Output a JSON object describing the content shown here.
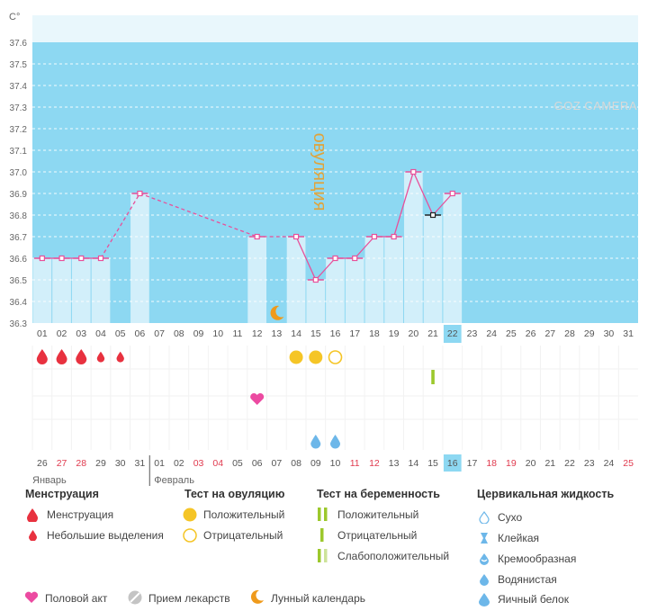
{
  "chart_data": {
    "type": "line",
    "ylabel": "C°",
    "ylim": [
      36.3,
      37.6
    ],
    "y_ticks": [
      "36.3",
      "36.4",
      "36.5",
      "36.6",
      "36.7",
      "36.8",
      "36.9",
      "37.0",
      "37.1",
      "37.2",
      "37.3",
      "37.4",
      "37.5",
      "37.6"
    ],
    "x_days": [
      "01",
      "02",
      "03",
      "04",
      "05",
      "06",
      "07",
      "08",
      "09",
      "10",
      "11",
      "12",
      "13",
      "14",
      "15",
      "16",
      "17",
      "18",
      "19",
      "20",
      "21",
      "22",
      "23",
      "24",
      "25",
      "26",
      "27",
      "28",
      "29",
      "30",
      "31"
    ],
    "highlight_day": "22",
    "series": [
      {
        "values": [
          36.6,
          36.6,
          36.6,
          36.6,
          null,
          36.9,
          null,
          null,
          null,
          null,
          null,
          36.7,
          null,
          36.7,
          36.5,
          36.6,
          36.6,
          36.7,
          36.7,
          37.0,
          36.8,
          36.9,
          null,
          null,
          null,
          null,
          null,
          null,
          null,
          null,
          null
        ]
      }
    ],
    "annotation": "овуляция",
    "menstruation_days": [
      {
        "day": "01",
        "type": "full"
      },
      {
        "day": "02",
        "type": "full"
      },
      {
        "day": "03",
        "type": "full"
      },
      {
        "day": "04",
        "type": "light"
      },
      {
        "day": "05",
        "type": "light"
      }
    ],
    "ovulation_test_days": [
      {
        "day": "14",
        "result": "positive"
      },
      {
        "day": "15",
        "result": "positive"
      },
      {
        "day": "16",
        "result": "negative"
      }
    ],
    "pregnancy_test_days": [
      {
        "day": "21",
        "result": "negative"
      }
    ],
    "intercourse_days": [
      "12"
    ],
    "cervical_fluid_days": [
      {
        "day": "15",
        "type": "watery"
      },
      {
        "day": "16",
        "type": "watery"
      }
    ],
    "moon_days": [
      "13"
    ],
    "cycle_dates": [
      "26",
      "27",
      "28",
      "29",
      "30",
      "31",
      "01",
      "02",
      "03",
      "04",
      "05",
      "06",
      "07",
      "08",
      "09",
      "10",
      "11",
      "12",
      "13",
      "14",
      "15",
      "16",
      "17",
      "18",
      "19",
      "20",
      "21",
      "22",
      "23",
      "24",
      "25"
    ],
    "cycle_red_dates": [
      1,
      2,
      8,
      9,
      16,
      17,
      23,
      24,
      30
    ],
    "cycle_highlight_index": 21,
    "month_left": "Январь",
    "month_right": "Февраль",
    "colors": {
      "sky": "#8dd8f2",
      "bar": "#d2effa",
      "line": "#e8509a",
      "red": "#e8313f",
      "yellow": "#f5c526",
      "green": "#9cc82c",
      "pink": "#ec4aa1",
      "blue": "#6db7e9",
      "orange": "#ef9a1b",
      "highlight": "#8dd8f2"
    }
  },
  "legend": {
    "menstruation": {
      "title": "Менструация",
      "full": "Менструация",
      "light": "Небольшие выделения"
    },
    "ovulation_test": {
      "title": "Тест на овуляцию",
      "positive": "Положительный",
      "negative": "Отрицательный"
    },
    "pregnancy_test": {
      "title": "Тест на беременность",
      "positive": "Положительный",
      "negative": "Отрицательный",
      "weak": "Слабоположительный"
    },
    "cervical_fluid": {
      "title": "Цервикальная жидкость",
      "dry": "Сухо",
      "sticky": "Клейкая",
      "creamy": "Кремообразная",
      "watery": "Водянистая",
      "eggwhite": "Яичный белок"
    },
    "sex": "Половой акт",
    "medicine": "Прием лекарств",
    "lunar": "Лунный календарь"
  },
  "watermark": "GOZ CAMERA"
}
